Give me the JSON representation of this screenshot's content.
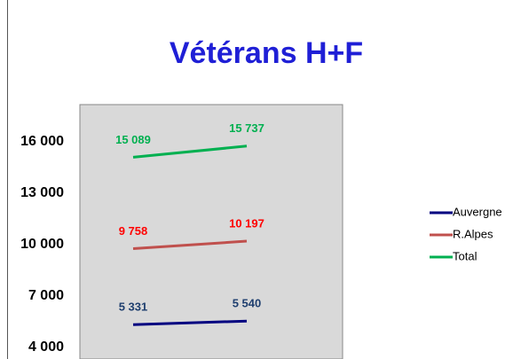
{
  "chart_data": {
    "type": "line",
    "title": "Vétérans H+F",
    "title_color": "#1f1fd6",
    "categories": [
      null,
      null
    ],
    "series": [
      {
        "name": "Auvergne",
        "color": "#000080",
        "label_color": "#1f3f6f",
        "values": [
          5331,
          5540
        ],
        "value_labels": [
          "5 331",
          "5 540"
        ]
      },
      {
        "name": "R.Alpes",
        "color": "#c0504d",
        "label_color": "#ff0000",
        "values": [
          9758,
          10197
        ],
        "value_labels": [
          "9 758",
          "10 197"
        ]
      },
      {
        "name": "Total",
        "color": "#00b050",
        "label_color": "#00b050",
        "values": [
          15089,
          15737
        ],
        "value_labels": [
          "15 089",
          "15 737"
        ]
      }
    ],
    "ylim": [
      4000,
      18000
    ],
    "yticks": [
      {
        "value": 4000,
        "label": "4 000"
      },
      {
        "value": 7000,
        "label": "7 000"
      },
      {
        "value": 10000,
        "label": "10 000"
      },
      {
        "value": 13000,
        "label": "13 000"
      },
      {
        "value": 16000,
        "label": "16 000"
      }
    ],
    "grid": false,
    "legend": "right",
    "plot_background": "#d9d9d9"
  }
}
